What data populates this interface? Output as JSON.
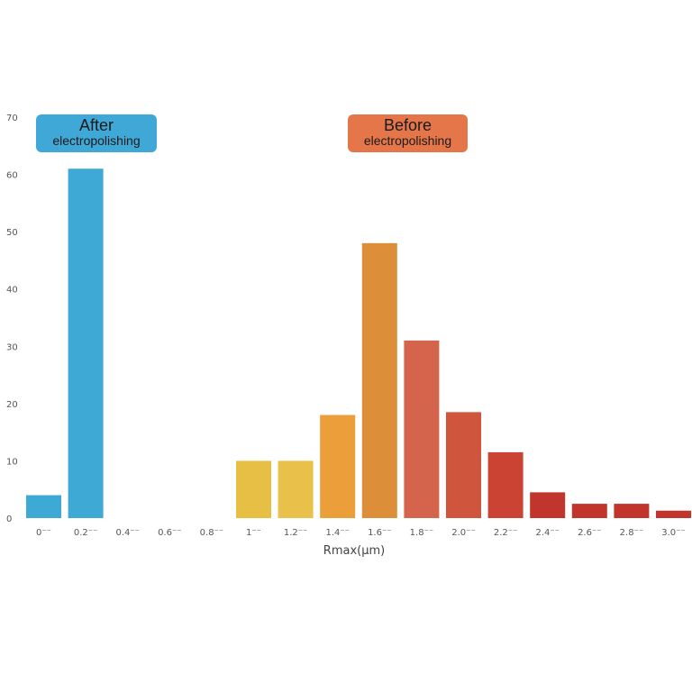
{
  "chart_data": {
    "type": "bar",
    "title": "",
    "xlabel": "Rmax(μm)",
    "ylabel": "",
    "ylim": [
      0,
      70
    ],
    "yticks": [
      0,
      10,
      20,
      30,
      40,
      50,
      60,
      70
    ],
    "grid": false,
    "categories": [
      "0⁻⁻",
      "0.2⁻⁻",
      "0.4⁻⁻",
      "0.6⁻⁻",
      "0.8⁻⁻",
      "1⁻⁻",
      "1.2⁻⁻",
      "1.4⁻⁻",
      "1.6⁻⁻",
      "1.8⁻⁻",
      "2.0⁻⁻",
      "2.2⁻⁻",
      "2.4⁻⁻",
      "2.6⁻⁻",
      "2.8⁻⁻",
      "3.0⁻⁻"
    ],
    "series": [
      {
        "name": "After electropolishing",
        "values": [
          4,
          61,
          0,
          0,
          0,
          null,
          null,
          null,
          null,
          null,
          null,
          null,
          null,
          null,
          null,
          null
        ],
        "colors": [
          "#3fa9d6",
          "#3fa9d6",
          "#3fa9d6",
          "#3fa9d6",
          "#3fa9d6",
          "#3fa9d6",
          "#3fa9d6",
          "#3fa9d6",
          "#3fa9d6",
          "#3fa9d6",
          "#3fa9d6",
          "#3fa9d6",
          "#3fa9d6",
          "#3fa9d6",
          "#3fa9d6",
          "#3fa9d6"
        ]
      },
      {
        "name": "Before electropolishing",
        "values": [
          null,
          null,
          null,
          null,
          null,
          10,
          10,
          18,
          48,
          31,
          18.5,
          11.5,
          4.5,
          2.5,
          2.5,
          1.3
        ],
        "colors": [
          "#e8bf45",
          "#e8bf45",
          "#e8bf45",
          "#e8bf45",
          "#e8bf45",
          "#e8bf45",
          "#e8c04a",
          "#eb9e3a",
          "#dc8f38",
          "#d4654c",
          "#cf553c",
          "#cb4433",
          "#c2352c",
          "#c2352c",
          "#c2352c",
          "#c2352c"
        ]
      }
    ],
    "legend": [
      {
        "title": "After",
        "subtitle": "electropolishing",
        "color": "#40a8d6",
        "placement": "top-left"
      },
      {
        "title": "Before",
        "subtitle": "electropolishing",
        "color": "#e5764a",
        "placement": "top-center"
      }
    ]
  }
}
